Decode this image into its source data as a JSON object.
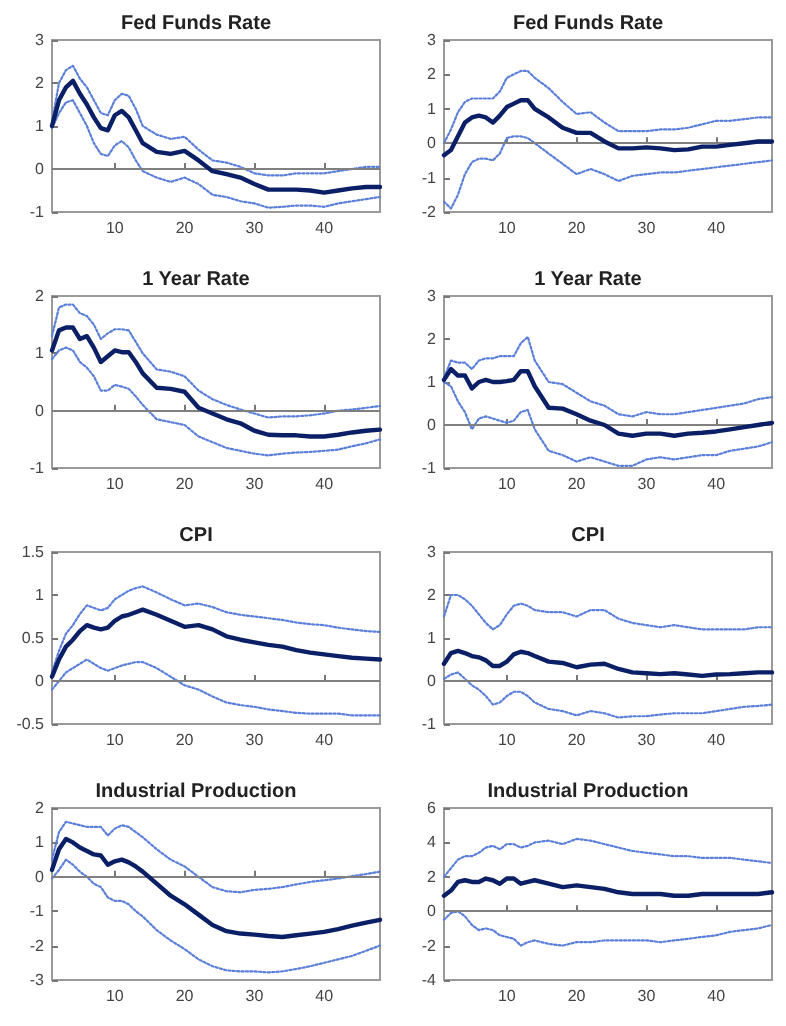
{
  "chart_data": [
    {
      "type": "line",
      "title": "Fed Funds Rate",
      "x": [
        1,
        2,
        3,
        4,
        5,
        6,
        7,
        8,
        9,
        10,
        11,
        12,
        13,
        14,
        16,
        18,
        20,
        22,
        24,
        26,
        28,
        30,
        32,
        34,
        36,
        38,
        40,
        42,
        44,
        46,
        48
      ],
      "xlim": [
        1,
        48
      ],
      "xticks": [
        10,
        20,
        30,
        40
      ],
      "ylim": [
        -1,
        3
      ],
      "yticks": [
        -1,
        0,
        1,
        2,
        3
      ],
      "grid": false,
      "marker": "none",
      "ref_lines": [
        {
          "axis": "y",
          "value": 0,
          "color": "#808080"
        }
      ],
      "series": [
        {
          "color": "#0b1f66",
          "line_style": "solid",
          "values": [
            1.0,
            1.6,
            1.9,
            2.05,
            1.75,
            1.5,
            1.2,
            0.95,
            0.9,
            1.25,
            1.35,
            1.2,
            0.9,
            0.6,
            0.4,
            0.35,
            0.42,
            0.2,
            -0.05,
            -0.12,
            -0.2,
            -0.35,
            -0.48,
            -0.48,
            -0.48,
            -0.5,
            -0.55,
            -0.5,
            -0.45,
            -0.42,
            -0.42
          ]
        },
        {
          "color": "#5b7fd9",
          "line_style": "dotted",
          "values": [
            1.1,
            2.0,
            2.3,
            2.4,
            2.1,
            1.9,
            1.6,
            1.3,
            1.25,
            1.6,
            1.75,
            1.7,
            1.4,
            1.0,
            0.8,
            0.7,
            0.75,
            0.45,
            0.2,
            0.15,
            0.05,
            -0.1,
            -0.15,
            -0.15,
            -0.1,
            -0.1,
            -0.1,
            -0.05,
            0.0,
            0.05,
            0.05
          ]
        },
        {
          "color": "#5b7fd9",
          "line_style": "dotted",
          "values": [
            0.95,
            1.3,
            1.55,
            1.6,
            1.3,
            1.0,
            0.6,
            0.35,
            0.3,
            0.55,
            0.65,
            0.5,
            0.2,
            -0.05,
            -0.2,
            -0.3,
            -0.2,
            -0.35,
            -0.6,
            -0.65,
            -0.75,
            -0.8,
            -0.9,
            -0.88,
            -0.85,
            -0.85,
            -0.88,
            -0.8,
            -0.75,
            -0.7,
            -0.65
          ]
        }
      ]
    },
    {
      "type": "line",
      "title": "Fed Funds Rate",
      "x": [
        1,
        2,
        3,
        4,
        5,
        6,
        7,
        8,
        9,
        10,
        11,
        12,
        13,
        14,
        16,
        18,
        20,
        22,
        24,
        26,
        28,
        30,
        32,
        34,
        36,
        38,
        40,
        42,
        44,
        46,
        48
      ],
      "xlim": [
        1,
        48
      ],
      "xticks": [
        10,
        20,
        30,
        40
      ],
      "ylim": [
        -2,
        3
      ],
      "yticks": [
        -2,
        -1,
        0,
        1,
        2,
        3
      ],
      "grid": false,
      "marker": "none",
      "ref_lines": [
        {
          "axis": "y",
          "value": 0,
          "color": "#808080"
        }
      ],
      "series": [
        {
          "color": "#0b1f66",
          "line_style": "solid",
          "values": [
            -0.35,
            -0.2,
            0.2,
            0.6,
            0.75,
            0.8,
            0.75,
            0.6,
            0.8,
            1.05,
            1.15,
            1.25,
            1.25,
            1.0,
            0.75,
            0.45,
            0.3,
            0.3,
            0.05,
            -0.15,
            -0.15,
            -0.12,
            -0.15,
            -0.2,
            -0.18,
            -0.1,
            -0.1,
            -0.05,
            0.0,
            0.05,
            0.05
          ]
        },
        {
          "color": "#5b7fd9",
          "line_style": "dotted",
          "values": [
            0.0,
            0.4,
            0.9,
            1.2,
            1.3,
            1.3,
            1.3,
            1.3,
            1.5,
            1.9,
            2.0,
            2.1,
            2.1,
            1.9,
            1.6,
            1.2,
            0.85,
            0.9,
            0.6,
            0.35,
            0.35,
            0.35,
            0.4,
            0.4,
            0.45,
            0.55,
            0.65,
            0.65,
            0.7,
            0.75,
            0.75
          ]
        },
        {
          "color": "#5b7fd9",
          "line_style": "dotted",
          "values": [
            -1.7,
            -1.9,
            -1.5,
            -0.9,
            -0.55,
            -0.45,
            -0.45,
            -0.5,
            -0.3,
            0.15,
            0.2,
            0.2,
            0.15,
            0.0,
            -0.3,
            -0.6,
            -0.9,
            -0.75,
            -0.9,
            -1.1,
            -0.95,
            -0.9,
            -0.85,
            -0.85,
            -0.8,
            -0.75,
            -0.7,
            -0.65,
            -0.6,
            -0.55,
            -0.5
          ]
        }
      ]
    },
    {
      "type": "line",
      "title": "1 Year Rate",
      "x": [
        1,
        2,
        3,
        4,
        5,
        6,
        7,
        8,
        9,
        10,
        11,
        12,
        13,
        14,
        16,
        18,
        20,
        22,
        24,
        26,
        28,
        30,
        32,
        34,
        36,
        38,
        40,
        42,
        44,
        46,
        48
      ],
      "xlim": [
        1,
        48
      ],
      "xticks": [
        10,
        20,
        30,
        40
      ],
      "ylim": [
        -1,
        2
      ],
      "yticks": [
        -1,
        0,
        1,
        2
      ],
      "grid": false,
      "marker": "none",
      "ref_lines": [
        {
          "axis": "y",
          "value": 0,
          "color": "#808080"
        }
      ],
      "series": [
        {
          "color": "#0b1f66",
          "line_style": "solid",
          "values": [
            1.05,
            1.4,
            1.45,
            1.45,
            1.25,
            1.3,
            1.1,
            0.85,
            0.95,
            1.05,
            1.02,
            1.02,
            0.85,
            0.65,
            0.4,
            0.38,
            0.33,
            0.05,
            -0.05,
            -0.15,
            -0.22,
            -0.35,
            -0.42,
            -0.43,
            -0.43,
            -0.45,
            -0.45,
            -0.42,
            -0.38,
            -0.35,
            -0.33
          ]
        },
        {
          "color": "#5b7fd9",
          "line_style": "dotted",
          "values": [
            1.3,
            1.8,
            1.85,
            1.85,
            1.7,
            1.65,
            1.5,
            1.25,
            1.35,
            1.42,
            1.42,
            1.4,
            1.2,
            1.0,
            0.72,
            0.68,
            0.6,
            0.35,
            0.2,
            0.1,
            0.02,
            -0.05,
            -0.12,
            -0.1,
            -0.1,
            -0.08,
            -0.05,
            0.0,
            0.02,
            0.05,
            0.08
          ]
        },
        {
          "color": "#5b7fd9",
          "line_style": "dotted",
          "values": [
            0.9,
            1.05,
            1.1,
            1.05,
            0.85,
            0.75,
            0.6,
            0.35,
            0.35,
            0.45,
            0.42,
            0.38,
            0.25,
            0.1,
            -0.15,
            -0.2,
            -0.25,
            -0.45,
            -0.55,
            -0.65,
            -0.7,
            -0.75,
            -0.78,
            -0.75,
            -0.73,
            -0.72,
            -0.7,
            -0.68,
            -0.62,
            -0.57,
            -0.5
          ]
        }
      ]
    },
    {
      "type": "line",
      "title": "1 Year Rate",
      "x": [
        1,
        2,
        3,
        4,
        5,
        6,
        7,
        8,
        9,
        10,
        11,
        12,
        13,
        14,
        16,
        18,
        20,
        22,
        24,
        26,
        28,
        30,
        32,
        34,
        36,
        38,
        40,
        42,
        44,
        46,
        48
      ],
      "xlim": [
        1,
        48
      ],
      "xticks": [
        10,
        20,
        30,
        40
      ],
      "ylim": [
        -1,
        3
      ],
      "yticks": [
        -1,
        0,
        1,
        2,
        3
      ],
      "grid": false,
      "marker": "none",
      "ref_lines": [
        {
          "axis": "y",
          "value": 0,
          "color": "#808080"
        }
      ],
      "series": [
        {
          "color": "#0b1f66",
          "line_style": "solid",
          "values": [
            1.05,
            1.3,
            1.15,
            1.15,
            0.85,
            1.0,
            1.05,
            1.0,
            1.0,
            1.02,
            1.05,
            1.25,
            1.25,
            0.9,
            0.4,
            0.38,
            0.25,
            0.1,
            0.0,
            -0.2,
            -0.25,
            -0.2,
            -0.2,
            -0.25,
            -0.2,
            -0.18,
            -0.15,
            -0.1,
            -0.05,
            0.0,
            0.05
          ]
        },
        {
          "color": "#5b7fd9",
          "line_style": "dotted",
          "values": [
            1.1,
            1.5,
            1.45,
            1.45,
            1.3,
            1.5,
            1.55,
            1.55,
            1.6,
            1.6,
            1.6,
            1.9,
            2.05,
            1.5,
            1.0,
            0.95,
            0.75,
            0.55,
            0.45,
            0.25,
            0.2,
            0.3,
            0.25,
            0.25,
            0.3,
            0.35,
            0.4,
            0.45,
            0.5,
            0.6,
            0.65
          ]
        },
        {
          "color": "#5b7fd9",
          "line_style": "dotted",
          "values": [
            1.0,
            0.9,
            0.55,
            0.3,
            -0.1,
            0.15,
            0.2,
            0.15,
            0.1,
            0.05,
            0.1,
            0.3,
            0.35,
            -0.1,
            -0.6,
            -0.7,
            -0.85,
            -0.75,
            -0.85,
            -0.95,
            -0.95,
            -0.8,
            -0.75,
            -0.8,
            -0.75,
            -0.7,
            -0.7,
            -0.6,
            -0.55,
            -0.5,
            -0.4
          ]
        }
      ]
    },
    {
      "type": "line",
      "title": "CPI",
      "x": [
        1,
        2,
        3,
        4,
        5,
        6,
        7,
        8,
        9,
        10,
        11,
        12,
        13,
        14,
        16,
        18,
        20,
        22,
        24,
        26,
        28,
        30,
        32,
        34,
        36,
        38,
        40,
        42,
        44,
        46,
        48
      ],
      "xlim": [
        1,
        48
      ],
      "xticks": [
        10,
        20,
        30,
        40
      ],
      "ylim": [
        -0.5,
        1.5
      ],
      "yticks": [
        -0.5,
        0,
        0.5,
        1,
        1.5
      ],
      "grid": false,
      "marker": "none",
      "ref_lines": [
        {
          "axis": "y",
          "value": 0,
          "color": "#808080"
        }
      ],
      "series": [
        {
          "color": "#0b1f66",
          "line_style": "solid",
          "values": [
            0.05,
            0.25,
            0.4,
            0.48,
            0.58,
            0.65,
            0.62,
            0.6,
            0.62,
            0.7,
            0.75,
            0.77,
            0.8,
            0.83,
            0.77,
            0.7,
            0.63,
            0.65,
            0.6,
            0.52,
            0.48,
            0.45,
            0.42,
            0.4,
            0.36,
            0.33,
            0.31,
            0.29,
            0.27,
            0.26,
            0.25
          ]
        },
        {
          "color": "#5b7fd9",
          "line_style": "dotted",
          "values": [
            0.1,
            0.35,
            0.55,
            0.65,
            0.78,
            0.88,
            0.85,
            0.82,
            0.85,
            0.95,
            1.0,
            1.05,
            1.08,
            1.1,
            1.03,
            0.95,
            0.88,
            0.9,
            0.86,
            0.8,
            0.77,
            0.75,
            0.73,
            0.71,
            0.68,
            0.66,
            0.65,
            0.62,
            0.6,
            0.58,
            0.57
          ]
        },
        {
          "color": "#5b7fd9",
          "line_style": "dotted",
          "values": [
            -0.1,
            0.0,
            0.1,
            0.15,
            0.2,
            0.25,
            0.2,
            0.15,
            0.12,
            0.15,
            0.18,
            0.2,
            0.22,
            0.22,
            0.15,
            0.05,
            -0.05,
            -0.1,
            -0.18,
            -0.25,
            -0.28,
            -0.3,
            -0.33,
            -0.35,
            -0.37,
            -0.38,
            -0.38,
            -0.38,
            -0.4,
            -0.4,
            -0.4
          ]
        }
      ]
    },
    {
      "type": "line",
      "title": "CPI",
      "x": [
        1,
        2,
        3,
        4,
        5,
        6,
        7,
        8,
        9,
        10,
        11,
        12,
        13,
        14,
        16,
        18,
        20,
        22,
        24,
        26,
        28,
        30,
        32,
        34,
        36,
        38,
        40,
        42,
        44,
        46,
        48
      ],
      "xlim": [
        1,
        48
      ],
      "xticks": [
        10,
        20,
        30,
        40
      ],
      "ylim": [
        -1,
        3
      ],
      "yticks": [
        -1,
        0,
        1,
        2,
        3
      ],
      "grid": false,
      "marker": "none",
      "ref_lines": [
        {
          "axis": "y",
          "value": 0,
          "color": "#808080"
        }
      ],
      "series": [
        {
          "color": "#0b1f66",
          "line_style": "solid",
          "values": [
            0.4,
            0.65,
            0.7,
            0.65,
            0.58,
            0.55,
            0.48,
            0.35,
            0.35,
            0.45,
            0.62,
            0.68,
            0.65,
            0.58,
            0.45,
            0.42,
            0.32,
            0.38,
            0.4,
            0.28,
            0.2,
            0.18,
            0.16,
            0.18,
            0.15,
            0.12,
            0.15,
            0.16,
            0.18,
            0.2,
            0.2
          ]
        },
        {
          "color": "#5b7fd9",
          "line_style": "dotted",
          "values": [
            1.5,
            2.0,
            2.0,
            1.9,
            1.75,
            1.55,
            1.35,
            1.2,
            1.3,
            1.55,
            1.75,
            1.8,
            1.75,
            1.65,
            1.6,
            1.6,
            1.5,
            1.65,
            1.65,
            1.45,
            1.35,
            1.3,
            1.25,
            1.3,
            1.25,
            1.2,
            1.2,
            1.2,
            1.2,
            1.25,
            1.25
          ]
        },
        {
          "color": "#5b7fd9",
          "line_style": "dotted",
          "values": [
            0.05,
            0.15,
            0.2,
            0.05,
            -0.1,
            -0.2,
            -0.35,
            -0.55,
            -0.5,
            -0.35,
            -0.25,
            -0.25,
            -0.35,
            -0.5,
            -0.65,
            -0.7,
            -0.8,
            -0.7,
            -0.75,
            -0.85,
            -0.82,
            -0.82,
            -0.78,
            -0.75,
            -0.75,
            -0.75,
            -0.7,
            -0.65,
            -0.6,
            -0.58,
            -0.55
          ]
        }
      ]
    },
    {
      "type": "line",
      "title": "Industrial Production",
      "x": [
        1,
        2,
        3,
        4,
        5,
        6,
        7,
        8,
        9,
        10,
        11,
        12,
        13,
        14,
        16,
        18,
        20,
        22,
        24,
        26,
        28,
        30,
        32,
        34,
        36,
        38,
        40,
        42,
        44,
        46,
        48
      ],
      "xlim": [
        1,
        48
      ],
      "xticks": [
        10,
        20,
        30,
        40
      ],
      "ylim": [
        -3,
        2
      ],
      "yticks": [
        -3,
        -2,
        -1,
        0,
        1,
        2
      ],
      "grid": false,
      "marker": "none",
      "ref_lines": [
        {
          "axis": "y",
          "value": 0,
          "color": "#808080"
        }
      ],
      "series": [
        {
          "color": "#0b1f66",
          "line_style": "solid",
          "values": [
            0.2,
            0.8,
            1.1,
            1.0,
            0.85,
            0.75,
            0.65,
            0.62,
            0.35,
            0.45,
            0.5,
            0.42,
            0.3,
            0.15,
            -0.2,
            -0.55,
            -0.8,
            -1.1,
            -1.4,
            -1.58,
            -1.65,
            -1.68,
            -1.72,
            -1.75,
            -1.7,
            -1.65,
            -1.6,
            -1.52,
            -1.42,
            -1.33,
            -1.25
          ]
        },
        {
          "color": "#5b7fd9",
          "line_style": "dotted",
          "values": [
            0.5,
            1.3,
            1.6,
            1.55,
            1.5,
            1.45,
            1.45,
            1.45,
            1.2,
            1.4,
            1.5,
            1.45,
            1.3,
            1.15,
            0.8,
            0.5,
            0.3,
            0.0,
            -0.3,
            -0.42,
            -0.45,
            -0.38,
            -0.35,
            -0.3,
            -0.22,
            -0.15,
            -0.1,
            -0.05,
            0.02,
            0.08,
            0.15
          ]
        },
        {
          "color": "#5b7fd9",
          "line_style": "dotted",
          "values": [
            -0.05,
            0.2,
            0.5,
            0.35,
            0.15,
            0.0,
            -0.2,
            -0.3,
            -0.6,
            -0.7,
            -0.7,
            -0.8,
            -1.0,
            -1.15,
            -1.55,
            -1.85,
            -2.1,
            -2.4,
            -2.6,
            -2.72,
            -2.75,
            -2.75,
            -2.78,
            -2.75,
            -2.68,
            -2.6,
            -2.5,
            -2.4,
            -2.3,
            -2.15,
            -2.0
          ]
        }
      ]
    },
    {
      "type": "line",
      "title": "Industrial Production",
      "x": [
        1,
        2,
        3,
        4,
        5,
        6,
        7,
        8,
        9,
        10,
        11,
        12,
        13,
        14,
        16,
        18,
        20,
        22,
        24,
        26,
        28,
        30,
        32,
        34,
        36,
        38,
        40,
        42,
        44,
        46,
        48
      ],
      "xlim": [
        1,
        48
      ],
      "xticks": [
        10,
        20,
        30,
        40
      ],
      "ylim": [
        -4,
        6
      ],
      "yticks": [
        -4,
        -2,
        0,
        2,
        4,
        6
      ],
      "grid": false,
      "marker": "none",
      "ref_lines": [
        {
          "axis": "y",
          "value": 0,
          "color": "#808080"
        }
      ],
      "series": [
        {
          "color": "#0b1f66",
          "line_style": "solid",
          "values": [
            0.9,
            1.2,
            1.7,
            1.8,
            1.7,
            1.7,
            1.9,
            1.8,
            1.6,
            1.9,
            1.9,
            1.6,
            1.7,
            1.8,
            1.6,
            1.4,
            1.5,
            1.4,
            1.3,
            1.1,
            1.0,
            1.0,
            1.0,
            0.9,
            0.9,
            1.0,
            1.0,
            1.0,
            1.0,
            1.0,
            1.1
          ]
        },
        {
          "color": "#5b7fd9",
          "line_style": "dotted",
          "values": [
            2.0,
            2.5,
            3.0,
            3.2,
            3.2,
            3.4,
            3.7,
            3.8,
            3.6,
            3.9,
            3.9,
            3.7,
            3.8,
            4.0,
            4.1,
            3.9,
            4.2,
            4.1,
            3.9,
            3.7,
            3.5,
            3.4,
            3.3,
            3.2,
            3.2,
            3.1,
            3.1,
            3.1,
            3.0,
            2.9,
            2.8
          ]
        },
        {
          "color": "#5b7fd9",
          "line_style": "dotted",
          "values": [
            -0.5,
            -0.1,
            0.0,
            -0.3,
            -0.8,
            -1.1,
            -1.0,
            -1.1,
            -1.4,
            -1.5,
            -1.6,
            -2.0,
            -1.8,
            -1.7,
            -1.9,
            -2.0,
            -1.8,
            -1.8,
            -1.7,
            -1.7,
            -1.7,
            -1.7,
            -1.8,
            -1.7,
            -1.6,
            -1.5,
            -1.4,
            -1.2,
            -1.1,
            -1.0,
            -0.8
          ]
        }
      ]
    }
  ]
}
